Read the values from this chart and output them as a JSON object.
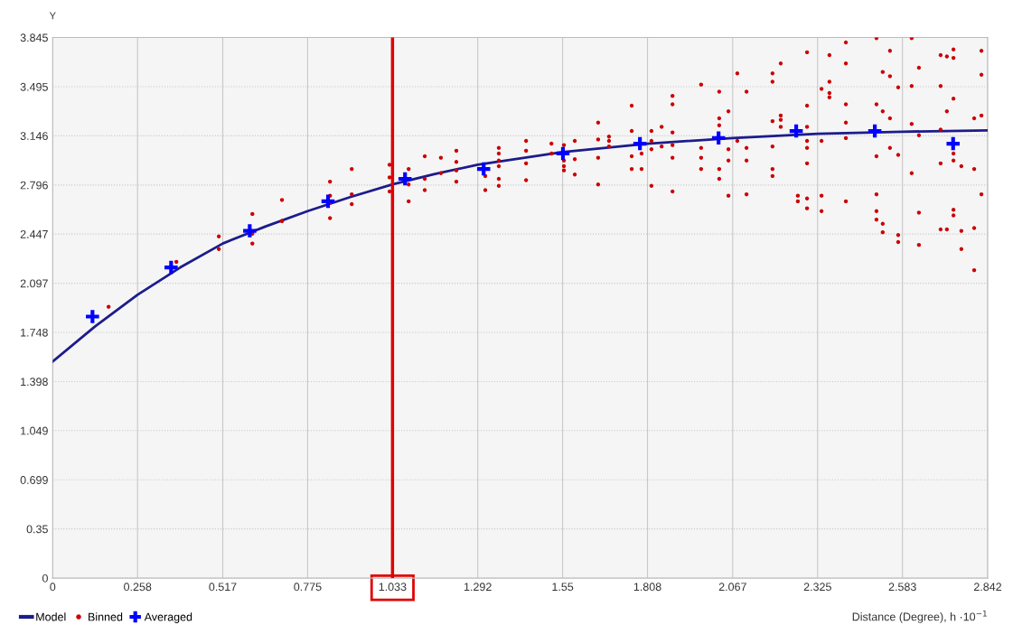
{
  "chart_data": {
    "type": "scatter",
    "ylabel": "Y",
    "xlabel": "Distance (Degree), h ·10$^{−1}$",
    "xlim": [
      0,
      2.842
    ],
    "xticks": [
      0,
      0.258,
      0.517,
      0.775,
      1.033,
      1.292,
      1.55,
      1.808,
      2.067,
      2.325,
      2.583,
      2.842
    ],
    "ylim": [
      0,
      3.845
    ],
    "yticks": [
      0,
      0.35,
      0.699,
      1.049,
      1.398,
      1.748,
      2.097,
      2.447,
      2.796,
      3.146,
      3.495,
      3.845
    ],
    "grid": true,
    "legend": "bottom left",
    "ref_lines": [
      {
        "axis": "x",
        "value": 1.033,
        "color": "#e00000",
        "line_style": "solid"
      }
    ],
    "series": [
      {
        "name": "Model",
        "type": "line",
        "color": "#1c1c8c",
        "marker": "none",
        "x": [
          0,
          0.129,
          0.258,
          0.388,
          0.517,
          0.646,
          0.775,
          0.904,
          1.033,
          1.162,
          1.292,
          1.55,
          1.808,
          2.067,
          2.325,
          2.583,
          2.842
        ],
        "values": [
          1.54,
          1.79,
          2.015,
          2.21,
          2.38,
          2.5,
          2.61,
          2.71,
          2.8,
          2.875,
          2.94,
          3.03,
          3.09,
          3.13,
          3.16,
          3.175,
          3.185
        ]
      },
      {
        "name": "Binned",
        "type": "scatter",
        "color": "#cc0000",
        "marker": "circle",
        "x": [
          0.17,
          0.376,
          0.505,
          0.505,
          0.607,
          0.607,
          0.607,
          0.697,
          0.697,
          0.697,
          0.843,
          0.843,
          0.843,
          0.843,
          0.909,
          0.909,
          0.909,
          1.024,
          1.024,
          1.024,
          1.082,
          1.082,
          1.082,
          1.131,
          1.131,
          1.131,
          1.18,
          1.18,
          1.227,
          1.227,
          1.227,
          1.227,
          1.315,
          1.315,
          1.356,
          1.356,
          1.356,
          1.356,
          1.356,
          1.356,
          1.439,
          1.439,
          1.439,
          1.439,
          1.516,
          1.516,
          1.554,
          1.554,
          1.554,
          1.554,
          1.587,
          1.587,
          1.587,
          1.658,
          1.658,
          1.658,
          1.658,
          1.691,
          1.691,
          1.691,
          1.76,
          1.76,
          1.76,
          1.76,
          1.79,
          1.79,
          1.82,
          1.82,
          1.82,
          1.82,
          1.851,
          1.851,
          1.884,
          1.884,
          1.884,
          1.884,
          1.884,
          1.884,
          1.971,
          1.971,
          1.971,
          1.971,
          2.026,
          2.026,
          2.026,
          2.026,
          2.026,
          2.054,
          2.054,
          2.054,
          2.054,
          2.081,
          2.081,
          2.109,
          2.109,
          2.109,
          2.109,
          2.188,
          2.188,
          2.188,
          2.188,
          2.188,
          2.188,
          2.213,
          2.213,
          2.213,
          2.213,
          2.265,
          2.265,
          2.293,
          2.293,
          2.293,
          2.293,
          2.293,
          2.293,
          2.293,
          2.293,
          2.337,
          2.337,
          2.337,
          2.337,
          2.361,
          2.361,
          2.361,
          2.361,
          2.411,
          2.411,
          2.411,
          2.411,
          2.411,
          2.411,
          2.504,
          2.504,
          2.504,
          2.504,
          2.504,
          2.504,
          2.523,
          2.523,
          2.523,
          2.523,
          2.545,
          2.545,
          2.545,
          2.545,
          2.57,
          2.57,
          2.57,
          2.57,
          2.611,
          2.611,
          2.611,
          2.611,
          2.633,
          2.633,
          2.633,
          2.633,
          2.699,
          2.699,
          2.699,
          2.699,
          2.699,
          2.718,
          2.718,
          2.718,
          2.738,
          2.738,
          2.738,
          2.738,
          2.738,
          2.738,
          2.738,
          2.762,
          2.762,
          2.762,
          2.801,
          2.801,
          2.801,
          2.801,
          2.823,
          2.823,
          2.823,
          2.823
        ],
        "values": [
          1.93,
          2.25,
          2.43,
          2.34,
          2.59,
          2.45,
          2.38,
          2.69,
          2.54,
          2.54,
          2.82,
          2.72,
          2.67,
          2.56,
          2.91,
          2.73,
          2.66,
          2.94,
          2.85,
          2.75,
          2.91,
          2.8,
          2.68,
          3.0,
          2.84,
          2.76,
          2.99,
          2.88,
          3.04,
          2.96,
          2.9,
          2.82,
          2.86,
          2.76,
          3.06,
          3.02,
          2.97,
          2.93,
          2.84,
          2.79,
          3.11,
          3.04,
          2.95,
          2.83,
          3.09,
          3.02,
          3.08,
          2.97,
          2.93,
          2.9,
          3.11,
          2.98,
          2.87,
          3.24,
          3.12,
          2.99,
          2.8,
          3.14,
          3.11,
          3.07,
          3.36,
          3.18,
          3.0,
          2.91,
          3.02,
          2.91,
          3.18,
          3.11,
          3.05,
          2.79,
          3.21,
          3.07,
          3.43,
          3.37,
          3.17,
          3.08,
          2.99,
          2.75,
          3.51,
          3.06,
          2.99,
          2.91,
          3.46,
          3.27,
          3.22,
          2.91,
          2.84,
          3.32,
          3.05,
          2.97,
          2.72,
          3.59,
          3.11,
          3.46,
          3.06,
          2.97,
          2.73,
          3.59,
          3.53,
          3.25,
          3.07,
          2.91,
          2.86,
          3.66,
          3.29,
          3.26,
          3.21,
          2.72,
          2.68,
          3.74,
          3.36,
          3.21,
          3.11,
          3.06,
          2.95,
          2.7,
          2.63,
          3.48,
          3.11,
          2.72,
          2.61,
          3.72,
          3.53,
          3.45,
          3.42,
          3.81,
          3.66,
          3.37,
          3.24,
          3.13,
          2.68,
          3.84,
          3.37,
          3.0,
          2.73,
          2.61,
          2.55,
          3.6,
          3.32,
          2.52,
          2.46,
          3.75,
          3.57,
          3.27,
          3.06,
          3.49,
          3.01,
          2.44,
          2.39,
          3.84,
          3.5,
          3.23,
          2.88,
          3.63,
          3.15,
          2.6,
          2.37,
          3.72,
          3.5,
          3.19,
          2.95,
          2.48,
          3.71,
          3.32,
          2.48,
          3.76,
          3.7,
          3.41,
          3.02,
          2.97,
          2.62,
          2.58,
          2.93,
          2.47,
          2.34,
          3.27,
          2.91,
          2.49,
          2.19,
          3.75,
          3.58,
          3.29,
          2.73
        ]
      },
      {
        "name": "Averaged",
        "type": "scatter",
        "color": "#0000ff",
        "marker": "cross",
        "x": [
          0.121,
          0.36,
          0.599,
          0.837,
          1.071,
          1.31,
          1.551,
          1.785,
          2.024,
          2.26,
          2.499,
          2.737
        ],
        "values": [
          1.86,
          2.21,
          2.47,
          2.68,
          2.84,
          2.91,
          3.02,
          3.09,
          3.13,
          3.18,
          3.18,
          3.09
        ]
      }
    ]
  }
}
